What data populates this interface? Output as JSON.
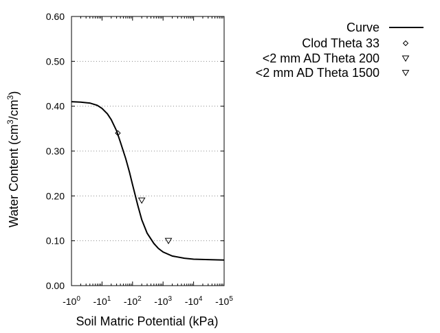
{
  "chart_data": {
    "type": "scatter",
    "x_scale": "log",
    "xlabel": "Soil Matric Potential (kPa)",
    "ylabel": "Water Content (cm³/cm³)",
    "ylabel_parts": {
      "prefix": "Water Content (cm",
      "sup1": "3",
      "mid": "/cm",
      "sup2": "3",
      "suffix": ")"
    },
    "xlim": [
      1,
      100000
    ],
    "ylim": [
      0,
      0.6
    ],
    "x_ticks": [
      {
        "value": 1,
        "base": "-10",
        "exp": "0"
      },
      {
        "value": 10,
        "base": "-10",
        "exp": "1"
      },
      {
        "value": 100,
        "base": "-10",
        "exp": "2"
      },
      {
        "value": 1000,
        "base": "-10",
        "exp": "3"
      },
      {
        "value": 10000,
        "base": "-10",
        "exp": "4"
      },
      {
        "value": 100000,
        "base": "-10",
        "exp": "5"
      }
    ],
    "y_ticks": [
      {
        "value": 0.0,
        "label": "0.00"
      },
      {
        "value": 0.1,
        "label": "0.10"
      },
      {
        "value": 0.2,
        "label": "0.20"
      },
      {
        "value": 0.3,
        "label": "0.30"
      },
      {
        "value": 0.4,
        "label": "0.40"
      },
      {
        "value": 0.5,
        "label": "0.50"
      },
      {
        "value": 0.6,
        "label": "0.60"
      }
    ],
    "grid": "horizontal-dotted",
    "legend_position": "top-right",
    "series": [
      {
        "name": "Curve",
        "kind": "line",
        "color": "#000000",
        "x": [
          1,
          2,
          4,
          7,
          10,
          15,
          20,
          30,
          40,
          60,
          80,
          100,
          150,
          200,
          300,
          500,
          700,
          1000,
          2000,
          5000,
          10000,
          30000,
          100000
        ],
        "y": [
          0.41,
          0.409,
          0.407,
          0.402,
          0.395,
          0.383,
          0.37,
          0.345,
          0.32,
          0.283,
          0.252,
          0.225,
          0.178,
          0.147,
          0.117,
          0.094,
          0.083,
          0.075,
          0.066,
          0.061,
          0.059,
          0.058,
          0.057
        ]
      },
      {
        "name": "Clod Theta 33",
        "kind": "marker",
        "marker": "diamond",
        "x": [
          33
        ],
        "y": [
          0.34
        ]
      },
      {
        "name": "<2 mm AD Theta 200",
        "kind": "marker",
        "marker": "triangle-down",
        "x": [
          200
        ],
        "y": [
          0.19
        ]
      },
      {
        "name": "<2 mm AD Theta 1500",
        "kind": "marker",
        "marker": "triangle-down",
        "x": [
          1500
        ],
        "y": [
          0.1
        ]
      }
    ]
  }
}
